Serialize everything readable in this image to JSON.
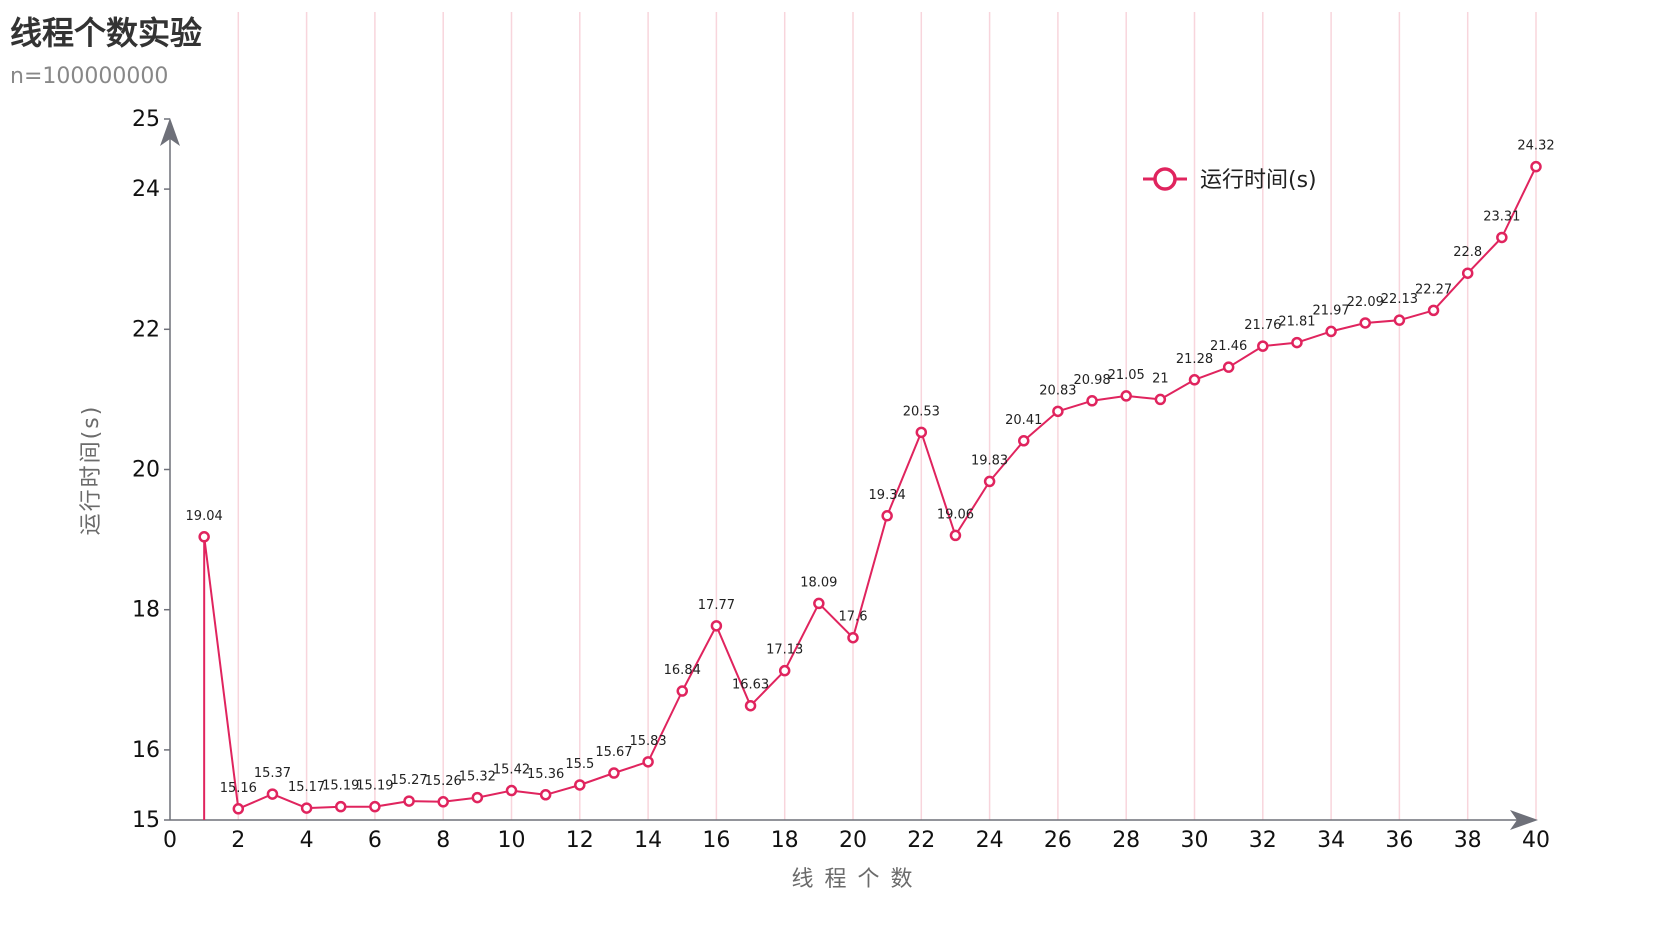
{
  "chart_data": {
    "type": "line",
    "title": "线程个数实验",
    "subtitle": "n=100000000",
    "xlabel": "线 程 个 数",
    "ylabel": "运行时间(s)",
    "xlim": [
      0,
      40
    ],
    "ylim": [
      15,
      25
    ],
    "x_ticks": [
      0,
      2,
      4,
      6,
      8,
      10,
      12,
      14,
      16,
      18,
      20,
      22,
      24,
      26,
      28,
      30,
      32,
      34,
      36,
      38,
      40
    ],
    "y_ticks": [
      15,
      16,
      18,
      20,
      22,
      24,
      25
    ],
    "grid": "vertical",
    "legend_position": "top-right",
    "series": [
      {
        "name": "运行时间(s)",
        "color": "#e0245e",
        "x": [
          1,
          2,
          3,
          4,
          5,
          6,
          7,
          8,
          9,
          10,
          11,
          12,
          13,
          14,
          15,
          16,
          17,
          18,
          19,
          20,
          21,
          22,
          23,
          24,
          25,
          26,
          27,
          28,
          29,
          30,
          31,
          32,
          33,
          34,
          35,
          36,
          37,
          38,
          39,
          40
        ],
        "values": [
          19.04,
          15.16,
          15.37,
          15.17,
          15.19,
          15.19,
          15.27,
          15.26,
          15.32,
          15.42,
          15.36,
          15.5,
          15.67,
          15.83,
          16.84,
          17.77,
          16.63,
          17.13,
          18.09,
          17.6,
          19.34,
          20.53,
          19.06,
          19.83,
          20.41,
          20.83,
          20.98,
          21.05,
          21,
          21.28,
          21.46,
          21.76,
          21.81,
          21.97,
          22.09,
          22.13,
          22.27,
          22.8,
          23.31,
          24.32
        ]
      }
    ]
  }
}
